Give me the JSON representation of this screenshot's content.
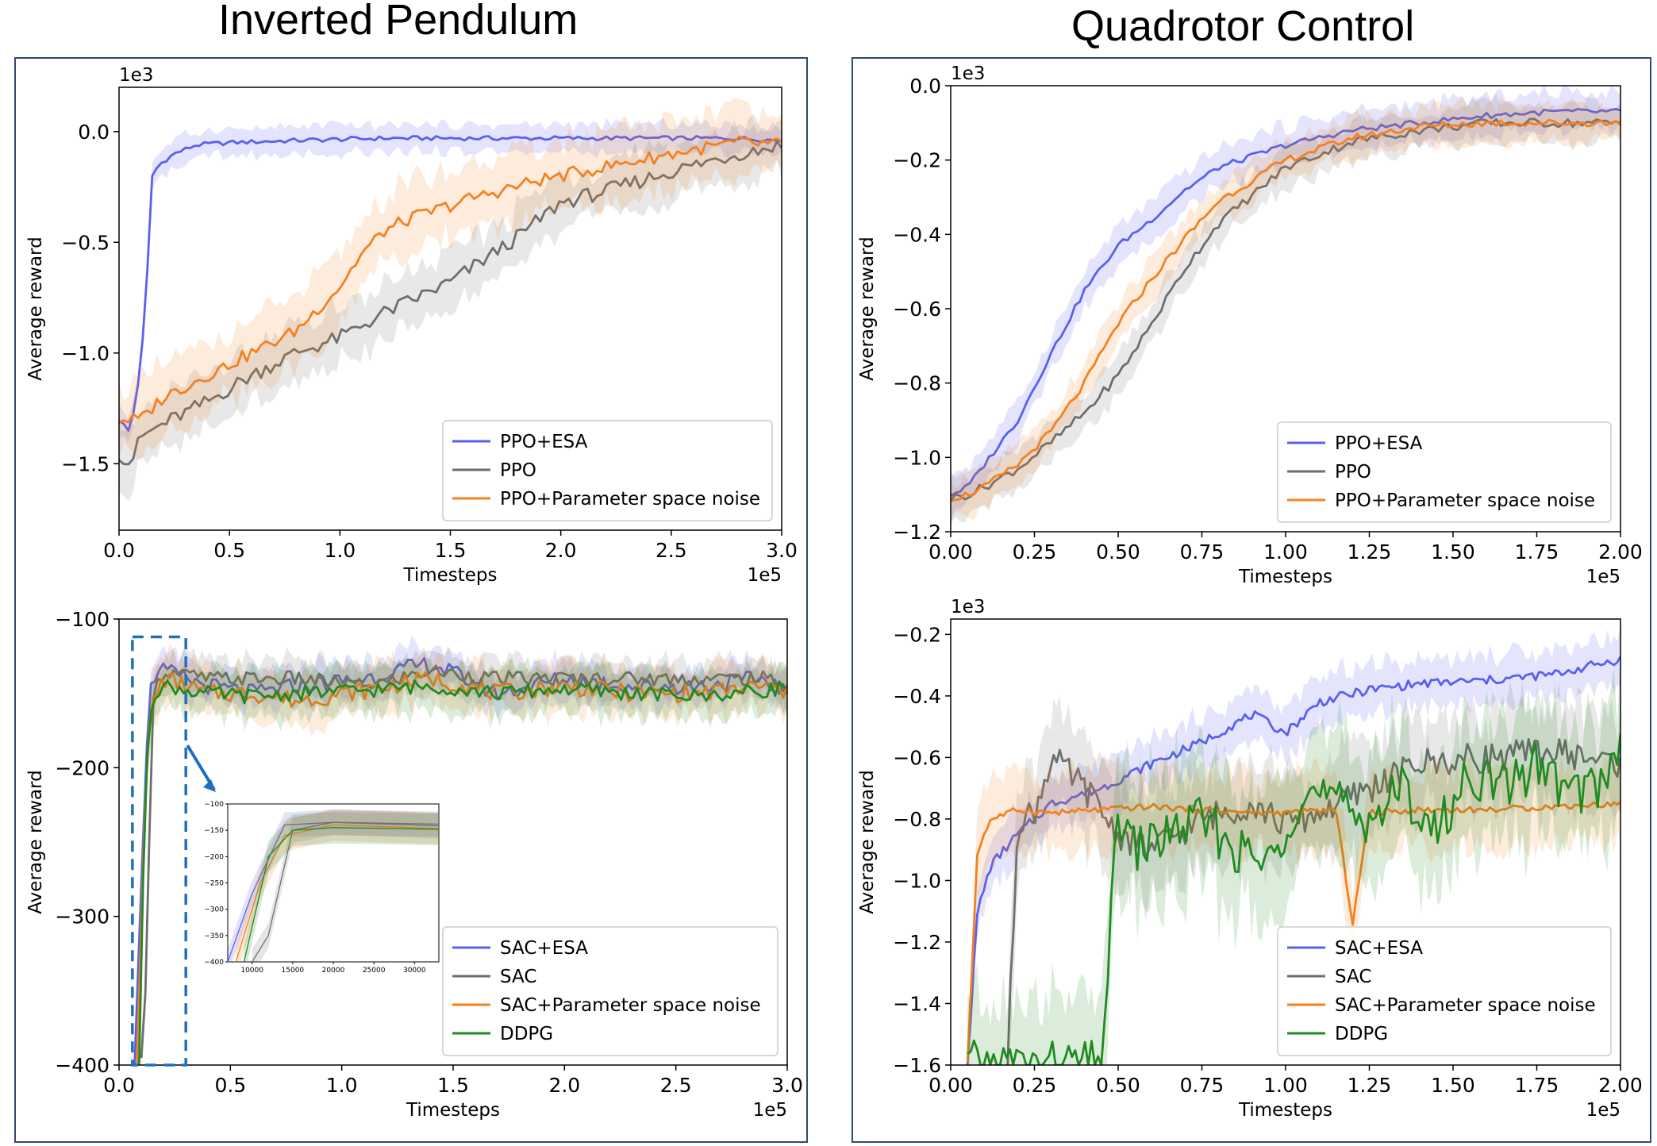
{
  "titles": {
    "left": "Inverted Pendulum",
    "right": "Quadrotor Control"
  },
  "colors": {
    "esa": "#5a5ff0",
    "ppo": "#6e6e6e",
    "noise": "#f5801f",
    "ddpg": "#1f8a1f",
    "callout": "#1f6fbf",
    "frame": "#2f4a70"
  },
  "chart_data": [
    {
      "id": "ip_ppo",
      "type": "line",
      "title": "Inverted Pendulum",
      "xlabel": "Timesteps",
      "ylabel": "Average reward",
      "x_multiplier": "1e5",
      "y_multiplier": "1e3",
      "xlim": [
        0,
        3.0
      ],
      "ylim": [
        -1.8,
        0.2
      ],
      "xticks": [
        0.0,
        0.5,
        1.0,
        1.5,
        2.0,
        2.5,
        3.0
      ],
      "xtick_labels": [
        "0.0",
        "0.5",
        "1.0",
        "1.5",
        "2.0",
        "2.5",
        "3.0"
      ],
      "yticks": [
        -1.5,
        -1.0,
        -0.5,
        0.0
      ],
      "ytick_labels": [
        "−1.5",
        "−1.0",
        "−0.5",
        "0.0"
      ],
      "legend_position": "lower-right",
      "series": [
        {
          "name": "PPO+ESA",
          "color_key": "esa",
          "band": 0.06,
          "x": [
            0,
            0.05,
            0.1,
            0.13,
            0.15,
            0.18,
            0.25,
            0.35,
            0.5,
            0.8,
            1.2,
            1.6,
            2.0,
            2.4,
            2.8,
            3.0
          ],
          "y": [
            -1.3,
            -1.36,
            -1.05,
            -0.6,
            -0.2,
            -0.15,
            -0.1,
            -0.06,
            -0.05,
            -0.04,
            -0.03,
            -0.03,
            -0.03,
            -0.03,
            -0.03,
            -0.04
          ]
        },
        {
          "name": "PPO",
          "color_key": "ppo",
          "band": 0.12,
          "x": [
            0,
            0.05,
            0.1,
            0.2,
            0.4,
            0.6,
            0.8,
            1.0,
            1.2,
            1.5,
            1.8,
            2.0,
            2.2,
            2.5,
            2.8,
            3.0
          ],
          "y": [
            -1.45,
            -1.5,
            -1.38,
            -1.32,
            -1.22,
            -1.1,
            -1.0,
            -0.93,
            -0.82,
            -0.68,
            -0.48,
            -0.32,
            -0.27,
            -0.18,
            -0.1,
            -0.06
          ]
        },
        {
          "name": "PPO+Parameter space noise",
          "color_key": "noise",
          "band": 0.15,
          "x": [
            0,
            0.1,
            0.2,
            0.4,
            0.6,
            0.8,
            1.0,
            1.1,
            1.2,
            1.3,
            1.6,
            1.9,
            2.2,
            2.5,
            2.8,
            3.0
          ],
          "y": [
            -1.3,
            -1.3,
            -1.2,
            -1.1,
            -1.0,
            -0.9,
            -0.7,
            -0.55,
            -0.45,
            -0.4,
            -0.3,
            -0.22,
            -0.16,
            -0.1,
            -0.05,
            -0.06
          ]
        }
      ]
    },
    {
      "id": "qc_ppo",
      "type": "line",
      "title": "Quadrotor Control",
      "xlabel": "Timesteps",
      "ylabel": "Average reward",
      "x_multiplier": "1e5",
      "y_multiplier": "1e3",
      "xlim": [
        0,
        2.0
      ],
      "ylim": [
        -1.2,
        0.0
      ],
      "xticks": [
        0.0,
        0.25,
        0.5,
        0.75,
        1.0,
        1.25,
        1.5,
        1.75,
        2.0
      ],
      "xtick_labels": [
        "0.00",
        "0.25",
        "0.50",
        "0.75",
        "1.00",
        "1.25",
        "1.50",
        "1.75",
        "2.00"
      ],
      "yticks": [
        -1.2,
        -1.0,
        -0.8,
        -0.6,
        -0.4,
        -0.2,
        0.0
      ],
      "ytick_labels": [
        "−1.2",
        "−1.0",
        "−0.8",
        "−0.6",
        "−0.4",
        "−0.2",
        "0.0"
      ],
      "legend_position": "lower-right",
      "series": [
        {
          "name": "PPO+ESA",
          "color_key": "esa",
          "band": 0.05,
          "x": [
            0,
            0.05,
            0.1,
            0.2,
            0.3,
            0.4,
            0.5,
            0.6,
            0.7,
            0.8,
            1.0,
            1.2,
            1.4,
            1.6,
            1.8,
            2.0
          ],
          "y": [
            -1.1,
            -1.08,
            -1.02,
            -0.9,
            -0.72,
            -0.55,
            -0.43,
            -0.36,
            -0.28,
            -0.22,
            -0.16,
            -0.12,
            -0.1,
            -0.08,
            -0.07,
            -0.07
          ]
        },
        {
          "name": "PPO",
          "color_key": "ppo",
          "band": 0.05,
          "x": [
            0,
            0.05,
            0.1,
            0.2,
            0.3,
            0.4,
            0.5,
            0.6,
            0.7,
            0.8,
            1.0,
            1.2,
            1.4,
            1.6,
            1.8,
            2.0
          ],
          "y": [
            -1.11,
            -1.1,
            -1.08,
            -1.03,
            -0.96,
            -0.88,
            -0.78,
            -0.64,
            -0.49,
            -0.37,
            -0.22,
            -0.15,
            -0.12,
            -0.1,
            -0.1,
            -0.1
          ]
        },
        {
          "name": "PPO+Parameter space noise",
          "color_key": "noise",
          "band": 0.05,
          "x": [
            0,
            0.05,
            0.1,
            0.2,
            0.3,
            0.4,
            0.5,
            0.6,
            0.7,
            0.8,
            1.0,
            1.2,
            1.4,
            1.6,
            1.8,
            2.0
          ],
          "y": [
            -1.11,
            -1.1,
            -1.08,
            -1.02,
            -0.93,
            -0.8,
            -0.64,
            -0.52,
            -0.41,
            -0.31,
            -0.2,
            -0.14,
            -0.11,
            -0.1,
            -0.1,
            -0.1
          ]
        }
      ]
    },
    {
      "id": "ip_sac",
      "type": "line",
      "title": "Inverted Pendulum",
      "xlabel": "Timesteps",
      "ylabel": "Average reward",
      "x_multiplier": "1e5",
      "y_multiplier": "",
      "xlim": [
        0,
        3.0
      ],
      "ylim": [
        -400,
        -100
      ],
      "xticks": [
        0.0,
        0.5,
        1.0,
        1.5,
        2.0,
        2.5,
        3.0
      ],
      "xtick_labels": [
        "0.0",
        "0.5",
        "1.0",
        "1.5",
        "2.0",
        "2.5",
        "3.0"
      ],
      "yticks": [
        -400,
        -300,
        -200,
        -100
      ],
      "ytick_labels": [
        "−400",
        "−300",
        "−200",
        "−100"
      ],
      "legend_position": "lower-right",
      "series": [
        {
          "name": "SAC+ESA",
          "color_key": "esa",
          "band": 12,
          "x": [
            0.07,
            0.1,
            0.14,
            0.2,
            0.4,
            0.6,
            0.8,
            1.1,
            1.4,
            1.7,
            2.0,
            2.3,
            2.6,
            2.9,
            3.0
          ],
          "y": [
            -400,
            -270,
            -140,
            -135,
            -145,
            -150,
            -145,
            -140,
            -130,
            -150,
            -140,
            -145,
            -145,
            -140,
            -150
          ]
        },
        {
          "name": "SAC",
          "color_key": "ppo",
          "band": 12,
          "x": [
            0.1,
            0.12,
            0.15,
            0.2,
            0.4,
            0.6,
            0.8,
            1.1,
            1.4,
            1.7,
            2.0,
            2.3,
            2.6,
            2.9,
            3.0
          ],
          "y": [
            -400,
            -350,
            -150,
            -135,
            -140,
            -140,
            -140,
            -145,
            -135,
            -140,
            -140,
            -140,
            -140,
            -140,
            -145
          ]
        },
        {
          "name": "SAC+Parameter space noise",
          "color_key": "noise",
          "band": 15,
          "x": [
            0.08,
            0.11,
            0.14,
            0.2,
            0.4,
            0.6,
            0.8,
            1.1,
            1.4,
            1.7,
            2.0,
            2.3,
            2.6,
            2.9,
            3.0
          ],
          "y": [
            -400,
            -250,
            -160,
            -140,
            -150,
            -150,
            -155,
            -148,
            -140,
            -150,
            -145,
            -150,
            -150,
            -145,
            -150
          ]
        },
        {
          "name": "DDPG",
          "color_key": "ddpg",
          "band": 15,
          "x": [
            0.09,
            0.12,
            0.15,
            0.2,
            0.4,
            0.6,
            0.8,
            1.1,
            1.4,
            1.7,
            2.0,
            2.3,
            2.6,
            2.9,
            3.0
          ],
          "y": [
            -400,
            -200,
            -150,
            -145,
            -150,
            -152,
            -150,
            -148,
            -145,
            -150,
            -147,
            -150,
            -152,
            -148,
            -145
          ]
        }
      ],
      "inset": {
        "xlim": [
          7000,
          33000
        ],
        "ylim": [
          -400,
          -100
        ],
        "xticks": [
          10000,
          15000,
          20000,
          25000,
          30000
        ],
        "xtick_labels": [
          "10000",
          "15000",
          "20000",
          "25000",
          "30000"
        ],
        "yticks": [
          -400,
          -350,
          -300,
          -250,
          -200,
          -150,
          -100
        ],
        "ytick_labels": [
          "−400",
          "−350",
          "−300",
          "−250",
          "−200",
          "−150",
          "−100"
        ]
      }
    },
    {
      "id": "qc_sac",
      "type": "line",
      "title": "Quadrotor Control",
      "xlabel": "Timesteps",
      "ylabel": "Average reward",
      "x_multiplier": "1e5",
      "y_multiplier": "1e3",
      "xlim": [
        0,
        2.0
      ],
      "ylim": [
        -1.6,
        -0.15
      ],
      "xticks": [
        0.0,
        0.25,
        0.5,
        0.75,
        1.0,
        1.25,
        1.5,
        1.75,
        2.0
      ],
      "xtick_labels": [
        "0.00",
        "0.25",
        "0.50",
        "0.75",
        "1.00",
        "1.25",
        "1.50",
        "1.75",
        "2.00"
      ],
      "yticks": [
        -1.6,
        -1.4,
        -1.2,
        -1.0,
        -0.8,
        -0.6,
        -0.4,
        -0.2
      ],
      "ytick_labels": [
        "−1.6",
        "−1.4",
        "−1.2",
        "−1.0",
        "−0.8",
        "−0.6",
        "−0.4",
        "−0.2"
      ],
      "legend_position": "lower-right",
      "series": [
        {
          "name": "SAC+ESA",
          "color_key": "esa",
          "band": 0.08,
          "x": [
            0.05,
            0.08,
            0.12,
            0.2,
            0.3,
            0.45,
            0.6,
            0.75,
            0.9,
            1.0,
            1.1,
            1.25,
            1.4,
            1.6,
            1.8,
            2.0
          ],
          "y": [
            -1.6,
            -1.1,
            -0.95,
            -0.85,
            -0.75,
            -0.7,
            -0.62,
            -0.55,
            -0.46,
            -0.52,
            -0.42,
            -0.38,
            -0.36,
            -0.35,
            -0.33,
            -0.28
          ]
        },
        {
          "name": "SAC",
          "color_key": "ppo",
          "band": 0.15,
          "x": [
            0.17,
            0.2,
            0.25,
            0.3,
            0.4,
            0.5,
            0.6,
            0.75,
            0.9,
            1.0,
            1.1,
            1.25,
            1.4,
            1.6,
            1.8,
            2.0
          ],
          "y": [
            -1.6,
            -0.8,
            -0.78,
            -0.6,
            -0.7,
            -0.85,
            -0.9,
            -0.8,
            -0.75,
            -0.82,
            -0.78,
            -0.7,
            -0.62,
            -0.6,
            -0.58,
            -0.62
          ]
        },
        {
          "name": "SAC+Parameter space noise",
          "color_key": "noise",
          "band": 0.12,
          "x": [
            0.05,
            0.08,
            0.12,
            0.2,
            0.3,
            0.45,
            0.6,
            0.75,
            0.9,
            1.0,
            1.15,
            1.2,
            1.25,
            1.4,
            1.6,
            1.8,
            2.0
          ],
          "y": [
            -1.6,
            -0.9,
            -0.8,
            -0.77,
            -0.78,
            -0.77,
            -0.76,
            -0.77,
            -0.78,
            -0.78,
            -0.77,
            -1.14,
            -0.78,
            -0.77,
            -0.77,
            -0.76,
            -0.75
          ]
        },
        {
          "name": "DDPG",
          "color_key": "ddpg",
          "band": 0.2,
          "x": [
            0.05,
            0.15,
            0.25,
            0.35,
            0.45,
            0.5,
            0.55,
            0.65,
            0.75,
            0.85,
            0.95,
            1.05,
            1.15,
            1.25,
            1.35,
            1.45,
            1.55,
            1.65,
            1.75,
            1.85,
            1.95,
            2.0
          ],
          "y": [
            -1.6,
            -1.6,
            -1.6,
            -1.6,
            -1.6,
            -0.78,
            -0.9,
            -0.85,
            -0.8,
            -0.9,
            -0.95,
            -0.7,
            -0.75,
            -0.8,
            -0.7,
            -0.85,
            -0.65,
            -0.7,
            -0.62,
            -0.72,
            -0.68,
            -0.55
          ]
        }
      ]
    }
  ]
}
